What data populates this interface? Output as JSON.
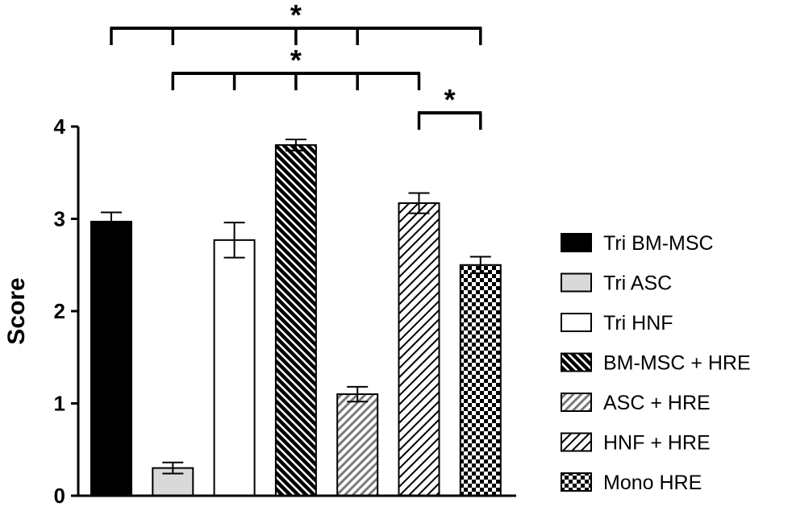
{
  "chart_data": {
    "type": "bar",
    "title": "",
    "xlabel": "",
    "ylabel": "Score",
    "ylim": [
      0,
      4
    ],
    "yticks": [
      0,
      1,
      2,
      3,
      4
    ],
    "grid": false,
    "legend_position": "right",
    "categories": [
      "Tri BM-MSC",
      "Tri ASC",
      "Tri HNF",
      "BM-MSC + HRE",
      "ASC + HRE",
      "HNF + HRE",
      "Mono HRE"
    ],
    "values": [
      2.97,
      0.3,
      2.77,
      3.8,
      1.1,
      3.17,
      2.5
    ],
    "errors": [
      0.1,
      0.06,
      0.19,
      0.06,
      0.08,
      0.11,
      0.09
    ],
    "styles": [
      {
        "fill": "#000000",
        "pattern": "solid"
      },
      {
        "fill": "#d9d9d9",
        "pattern": "solid"
      },
      {
        "fill": "#ffffff",
        "pattern": "solid"
      },
      {
        "fill": "#000000",
        "pattern": "diag-dense-dark"
      },
      {
        "fill": "#8c8c8c",
        "pattern": "diag-gray"
      },
      {
        "fill": "#000000",
        "pattern": "diag-sparse"
      },
      {
        "fill": "#000000",
        "pattern": "checker"
      }
    ],
    "legend": [
      "Tri BM-MSC",
      "Tri ASC",
      "Tri HNF",
      "BM-MSC + HRE",
      "ASC + HRE",
      "HNF + HRE",
      "Mono HRE"
    ],
    "significance": [
      {
        "label": "*",
        "from": 0,
        "to": 6,
        "ticks": [
          0,
          1,
          3,
          4,
          6
        ]
      },
      {
        "label": "*",
        "from": 1,
        "to": 5,
        "ticks": [
          1,
          2,
          3,
          4,
          5
        ]
      },
      {
        "label": "*",
        "from": 5,
        "to": 6,
        "ticks": [
          5,
          6
        ]
      }
    ]
  }
}
